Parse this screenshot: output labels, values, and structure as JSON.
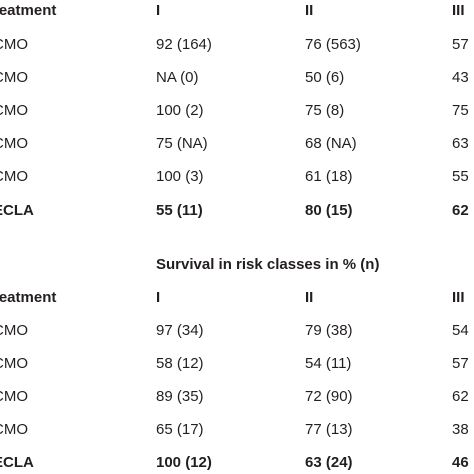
{
  "table1": {
    "header": [
      "reatment",
      "I",
      "II",
      "III"
    ],
    "rows": [
      {
        "treatment": "CMO",
        "c1": "92 (164)",
        "c2": "76 (563)",
        "c3": "57"
      },
      {
        "treatment": "CMO",
        "c1": "NA (0)",
        "c2": "50 (6)",
        "c3": "43"
      },
      {
        "treatment": "CMO",
        "c1": "100 (2)",
        "c2": "75 (8)",
        "c3": "75"
      },
      {
        "treatment": "CMO",
        "c1": "75 (NA)",
        "c2": "68 (NA)",
        "c3": "63"
      },
      {
        "treatment": "CMO",
        "c1": "100 (3)",
        "c2": "61 (18)",
        "c3": "55"
      },
      {
        "treatment": "ECLA",
        "c1": "55 (11)",
        "c2": "80 (15)",
        "c3": "62"
      }
    ]
  },
  "caption": "Survival in risk classes in % (n)",
  "table2": {
    "header": [
      "reatment",
      "I",
      "II",
      "III"
    ],
    "rows": [
      {
        "treatment": "CMO",
        "c1": "97 (34)",
        "c2": "79 (38)",
        "c3": "54"
      },
      {
        "treatment": "CMO",
        "c1": "58 (12)",
        "c2": "54 (11)",
        "c3": "57"
      },
      {
        "treatment": "CMO",
        "c1": "89 (35)",
        "c2": "72 (90)",
        "c3": "62"
      },
      {
        "treatment": "CMO",
        "c1": "65 (17)",
        "c2": "77 (13)",
        "c3": "38"
      },
      {
        "treatment": "ECLA",
        "c1": "100 (12)",
        "c2": "63 (24)",
        "c3": "46"
      }
    ]
  }
}
